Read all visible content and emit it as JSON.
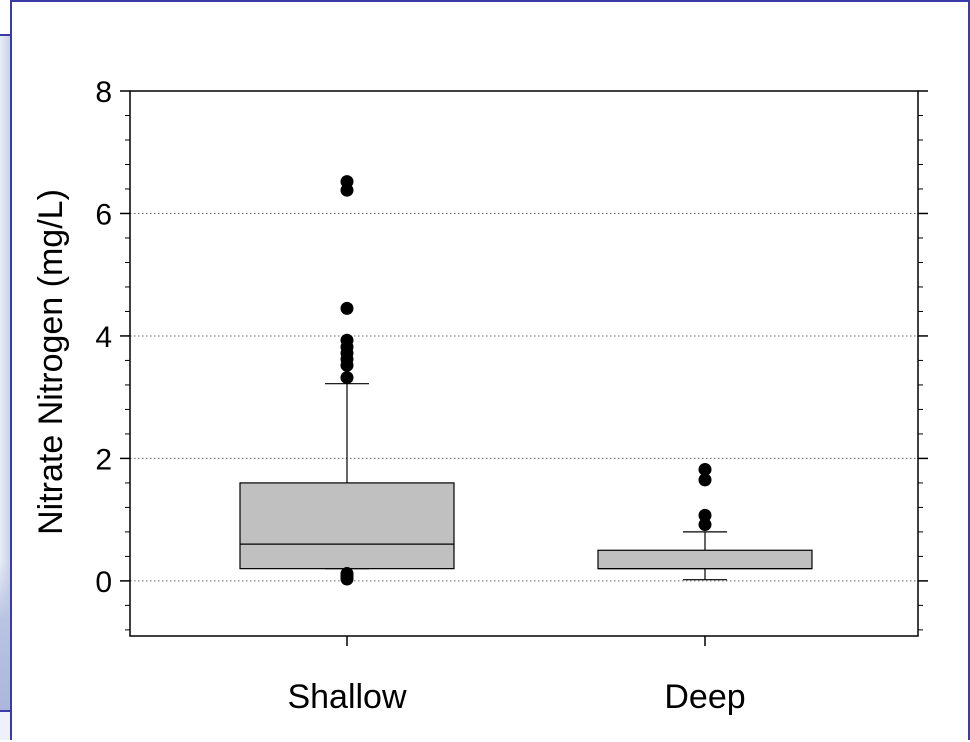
{
  "chart_data": {
    "type": "box",
    "title": "",
    "xlabel": "",
    "ylabel": "Nitrate Nitrogen (mg/L)",
    "ylim": [
      -0.9,
      8
    ],
    "yticks": [
      0,
      2,
      4,
      6,
      8
    ],
    "grid": {
      "y": true,
      "style": "dotted",
      "lines": [
        0,
        2,
        4,
        6
      ]
    },
    "box_color": "#c0c0c0",
    "categories": [
      "Shallow",
      "Deep"
    ],
    "boxes": [
      {
        "category": "Shallow",
        "whisker_low": 0.2,
        "q1": 0.2,
        "median": 0.6,
        "q3": 1.6,
        "whisker_high": 3.22,
        "outliers": [
          0.03,
          0.06,
          0.09,
          0.12,
          3.32,
          3.52,
          3.62,
          3.72,
          3.82,
          3.93,
          4.45,
          6.38,
          6.52
        ]
      },
      {
        "category": "Deep",
        "whisker_low": 0.02,
        "q1": 0.2,
        "median": 0.2,
        "q3": 0.5,
        "whisker_high": 0.8,
        "outliers": [
          0.92,
          1.07,
          1.65,
          1.82
        ]
      }
    ]
  }
}
